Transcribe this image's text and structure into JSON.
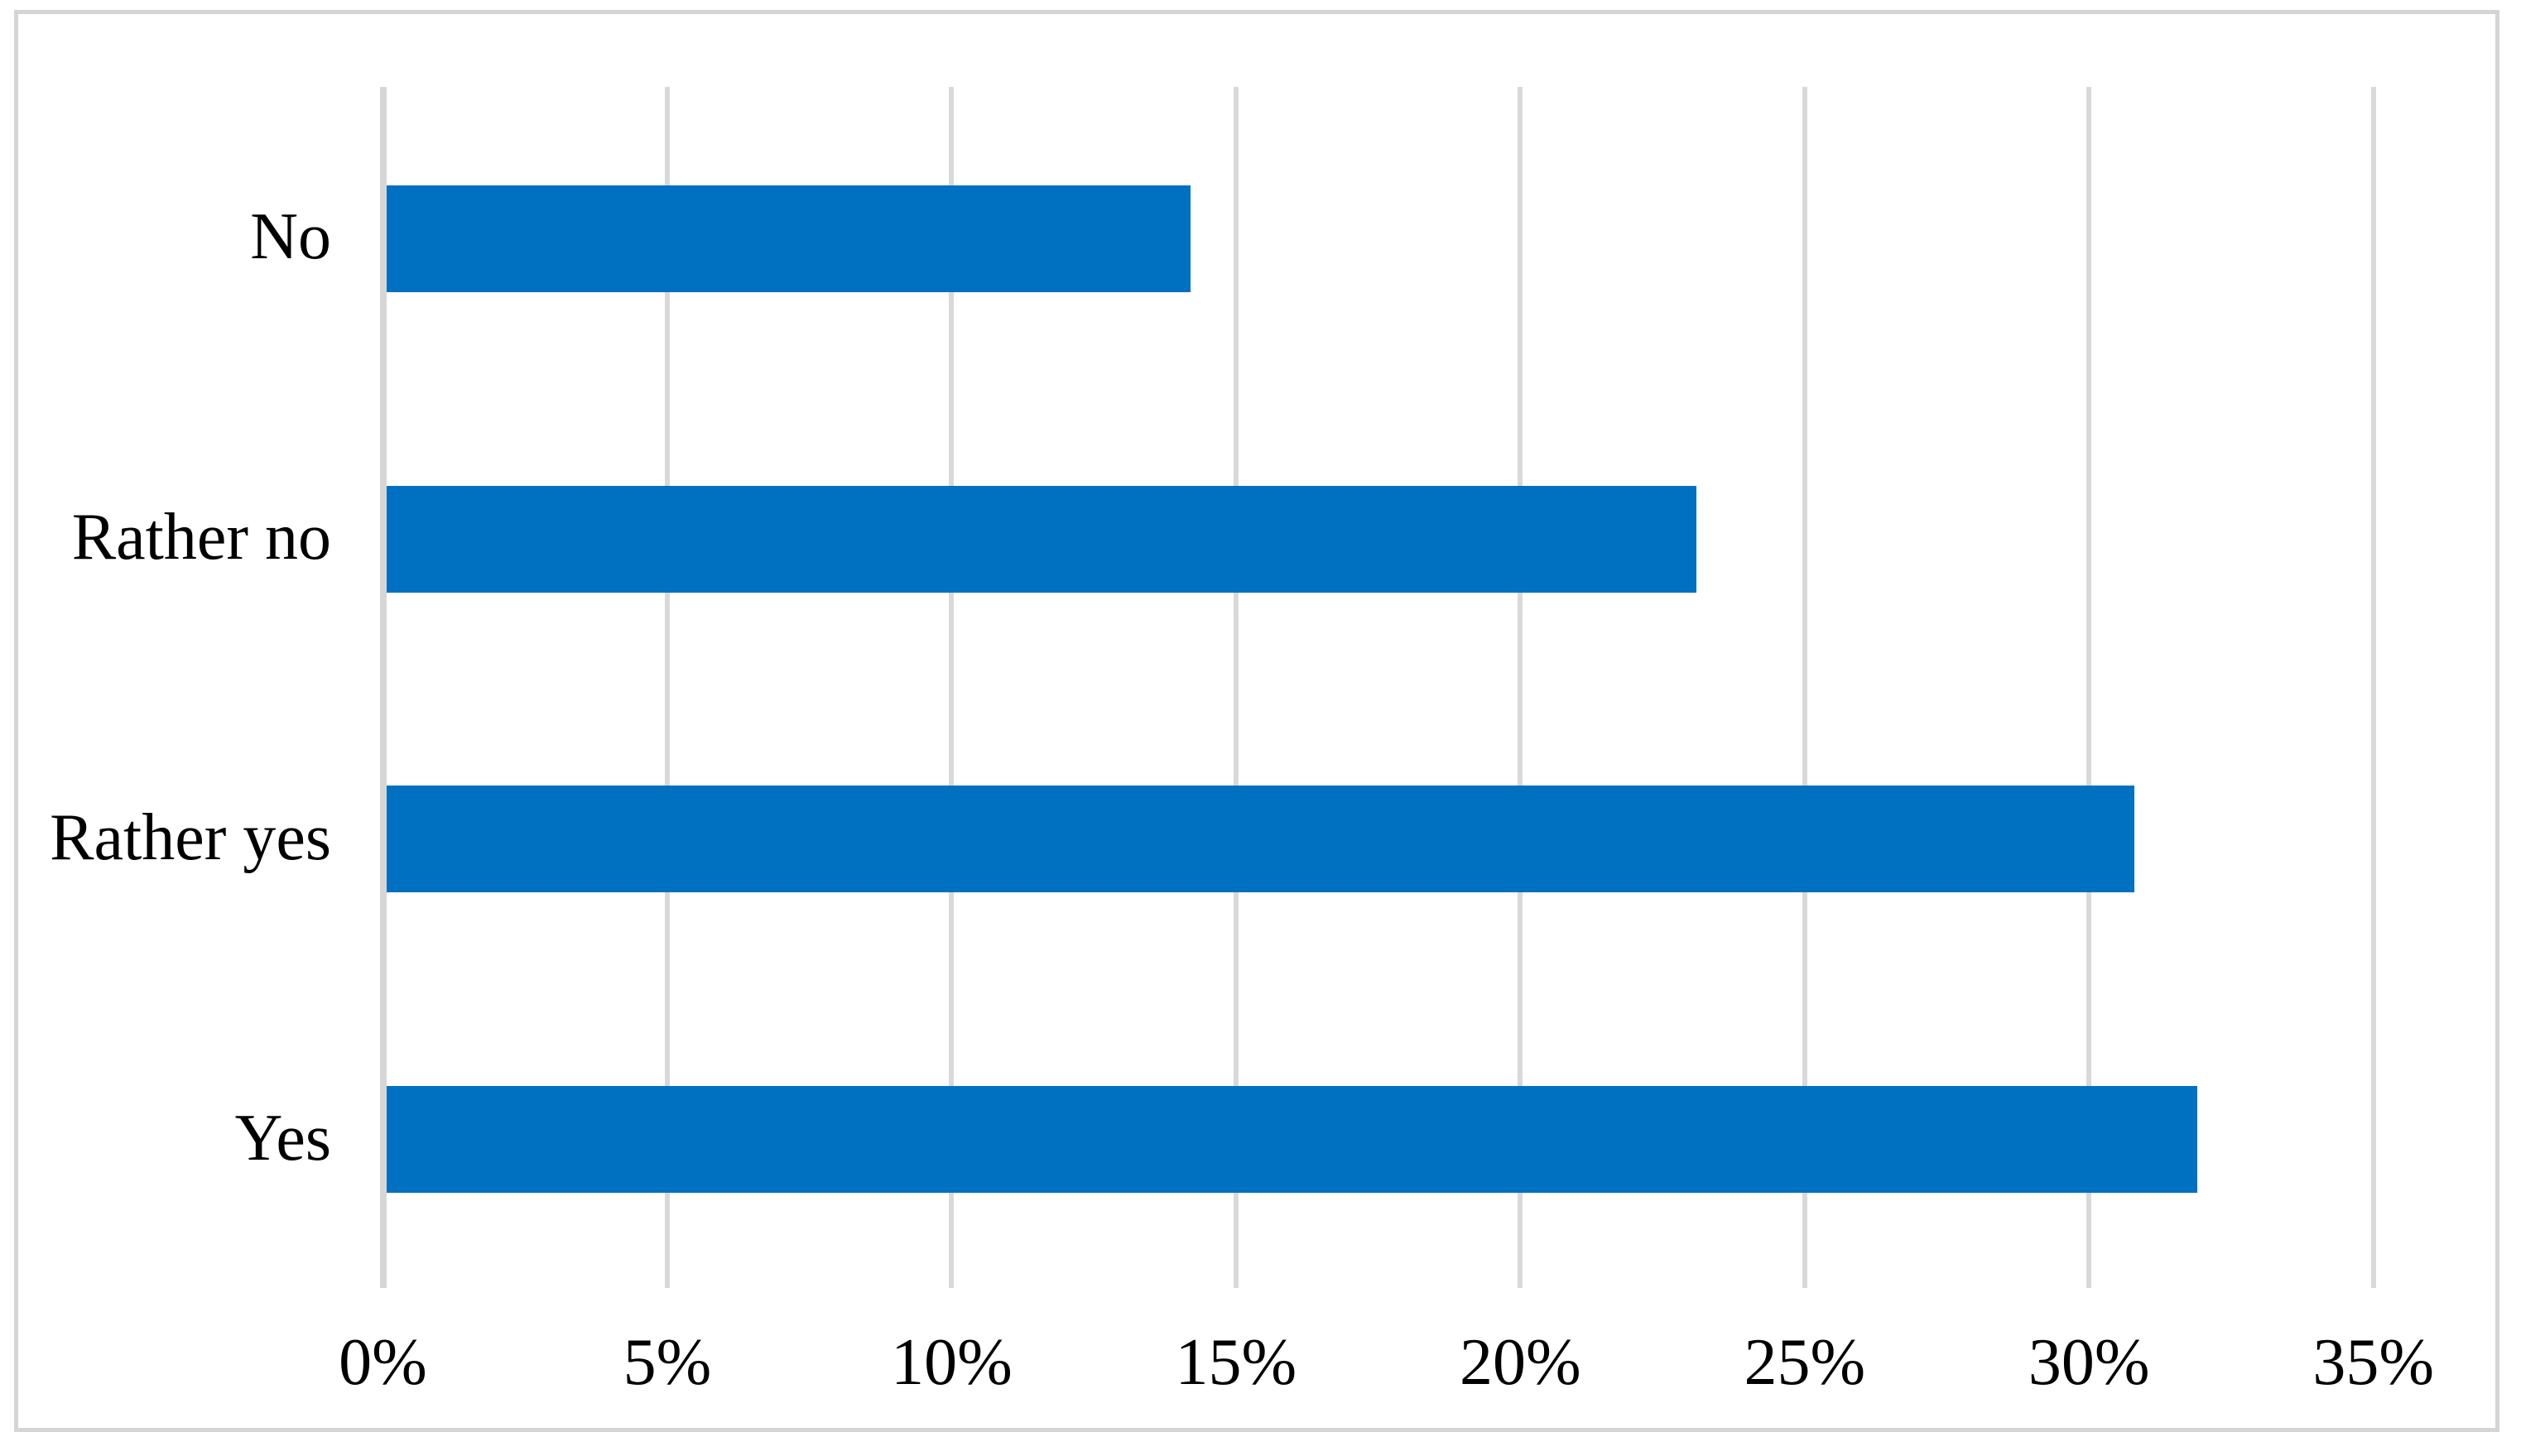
{
  "chart_data": {
    "type": "bar",
    "orientation": "horizontal",
    "title": "",
    "xlabel": "",
    "ylabel": "",
    "categories": [
      "No",
      "Rather no",
      "Rather yes",
      "Yes"
    ],
    "categories_order": "top-to-bottom",
    "values": [
      14.2,
      23.1,
      30.8,
      31.9
    ],
    "unit": "%",
    "xlim": [
      0,
      35
    ],
    "x_tick_step": 5,
    "x_tick_labels": [
      "0%",
      "5%",
      "10%",
      "15%",
      "20%",
      "25%",
      "30%",
      "35%"
    ],
    "grid": "vertical-only",
    "legend": "none",
    "data_labels": "none",
    "colors": {
      "bar": "#0070C0",
      "gridline": "#D9D9D9",
      "axis_line": "#D6D6D6",
      "frame_border": "#D5D5D5",
      "text": "#000000",
      "background": "#FFFFFF"
    }
  }
}
